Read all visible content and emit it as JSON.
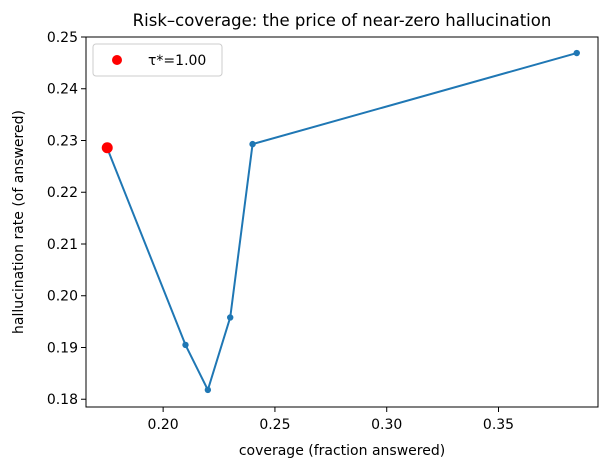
{
  "chart_data": {
    "type": "line",
    "title": "Risk–coverage: the price of near-zero hallucination",
    "xlabel": "coverage (fraction answered)",
    "ylabel": "hallucination rate (of answered)",
    "xlim": [
      0.1655,
      0.3945
    ],
    "ylim": [
      0.1785,
      0.25
    ],
    "xticks": [
      0.2,
      0.25,
      0.3,
      0.35
    ],
    "xtick_labels": [
      "0.20",
      "0.25",
      "0.30",
      "0.35"
    ],
    "yticks": [
      0.18,
      0.19,
      0.2,
      0.21,
      0.22,
      0.23,
      0.24,
      0.25
    ],
    "ytick_labels": [
      "0.18",
      "0.19",
      "0.20",
      "0.21",
      "0.22",
      "0.23",
      "0.24",
      "0.25"
    ],
    "grid": false,
    "legend_position": "top-left",
    "series": [
      {
        "color": "#1f77b4",
        "x": [
          0.175,
          0.21,
          0.22,
          0.23,
          0.24,
          0.385
        ],
        "y": [
          0.2285,
          0.1905,
          0.1818,
          0.1958,
          0.2293,
          0.2469
        ]
      }
    ],
    "highlight": {
      "name": "τ*=1.00",
      "color": "#ff0000",
      "x": 0.175,
      "y": 0.2286
    }
  }
}
